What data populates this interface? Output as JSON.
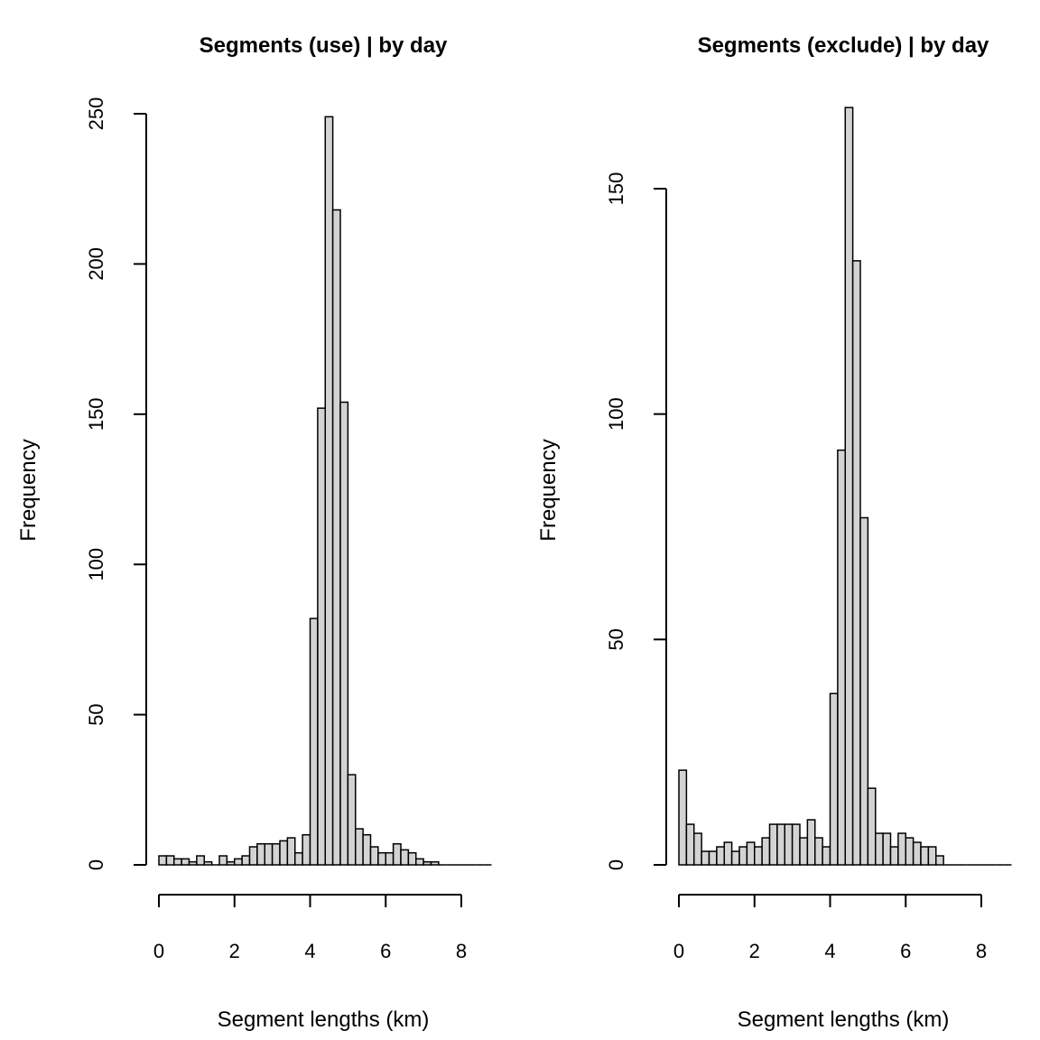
{
  "chart_data": [
    {
      "type": "bar",
      "title": "Segments (use) |  by day",
      "xlabel": "Segment lengths (km)",
      "ylabel": "Frequency",
      "bin_width": 0.2,
      "bin_start": 0,
      "xlim": [
        0,
        8.8
      ],
      "ylim": [
        0,
        250
      ],
      "xticks": [
        0,
        2,
        4,
        6,
        8
      ],
      "yticks": [
        0,
        50,
        100,
        150,
        200,
        250
      ],
      "values": [
        3,
        3,
        2,
        2,
        1,
        3,
        1,
        0,
        3,
        1,
        2,
        3,
        6,
        7,
        7,
        7,
        8,
        9,
        4,
        10,
        82,
        152,
        249,
        218,
        154,
        30,
        12,
        10,
        6,
        4,
        4,
        7,
        5,
        4,
        2,
        1,
        1,
        0,
        0,
        0,
        0,
        0,
        0,
        0
      ],
      "bar_color": "#d3d3d3",
      "grid": false
    },
    {
      "type": "bar",
      "title": "Segments (exclude) |  by day",
      "xlabel": "Segment lengths (km)",
      "ylabel": "Frequency",
      "bin_width": 0.2,
      "bin_start": 0,
      "xlim": [
        0,
        8.8
      ],
      "ylim": [
        0,
        150
      ],
      "xticks": [
        0,
        2,
        4,
        6,
        8
      ],
      "yticks": [
        0,
        50,
        100,
        150
      ],
      "values": [
        21,
        9,
        7,
        3,
        3,
        4,
        5,
        3,
        4,
        5,
        4,
        6,
        9,
        9,
        9,
        9,
        6,
        10,
        6,
        4,
        38,
        92,
        168,
        134,
        77,
        17,
        7,
        7,
        4,
        7,
        6,
        5,
        4,
        4,
        2,
        0,
        0,
        0,
        0,
        0,
        0,
        0,
        0,
        0
      ],
      "bar_color": "#d3d3d3",
      "grid": false
    }
  ]
}
